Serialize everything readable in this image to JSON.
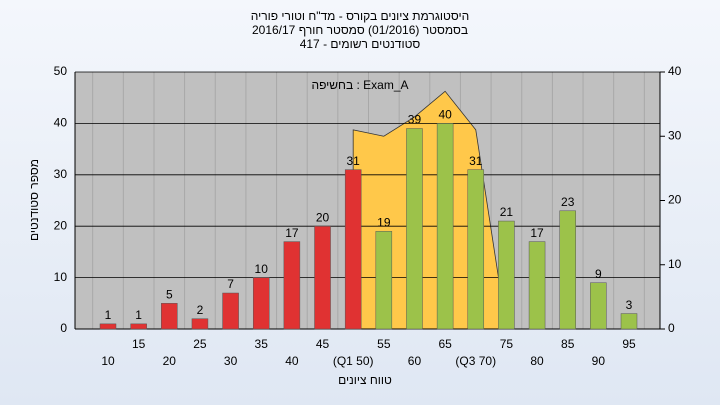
{
  "chart_data": {
    "type": "bar",
    "title": [
      "היסטוגרמת ציונים בקורס - מד\"ח וטורי פוריה",
      "בסמסטר  (01/2016)  סמסטר חורף 2016/17",
      "סטודנטים רשומים - 417"
    ],
    "annotation": "בחשיפה : Exam_A",
    "x_label": "טווח ציונים",
    "y_label": "מספר סטודנטים",
    "categories": [
      "10",
      "15",
      "20",
      "25",
      "30",
      "35",
      "40",
      "45",
      "(Q1 50)",
      "55",
      "60",
      "65",
      "(Q3 70)",
      "75",
      "80",
      "85",
      "90",
      "95"
    ],
    "series": [
      {
        "type": "bar",
        "values": [
          1,
          1,
          5,
          2,
          7,
          10,
          17,
          20,
          31,
          19,
          39,
          40,
          31,
          21,
          17,
          23,
          9,
          3
        ],
        "colors": [
          "#e03232",
          "#e03232",
          "#e03232",
          "#e03232",
          "#e03232",
          "#e03232",
          "#e03232",
          "#e03232",
          "#e03232",
          "#9cc24a",
          "#9cc24a",
          "#9cc24a",
          "#9cc24a",
          "#9cc24a",
          "#9cc24a",
          "#9cc24a",
          "#9cc24a",
          "#9cc24a"
        ]
      },
      {
        "type": "area",
        "axis": "y2",
        "color": "#ffc84a",
        "values": [
          null,
          null,
          null,
          null,
          null,
          null,
          null,
          null,
          31,
          30,
          33,
          37,
          31,
          0,
          null,
          null,
          null,
          null
        ]
      }
    ],
    "ylim": [
      0,
      50
    ],
    "yticks": [
      0,
      10,
      20,
      30,
      40,
      50
    ],
    "y2lim": [
      0,
      40
    ],
    "y2ticks": [
      0,
      10,
      20,
      30,
      40
    ],
    "grid": true
  }
}
